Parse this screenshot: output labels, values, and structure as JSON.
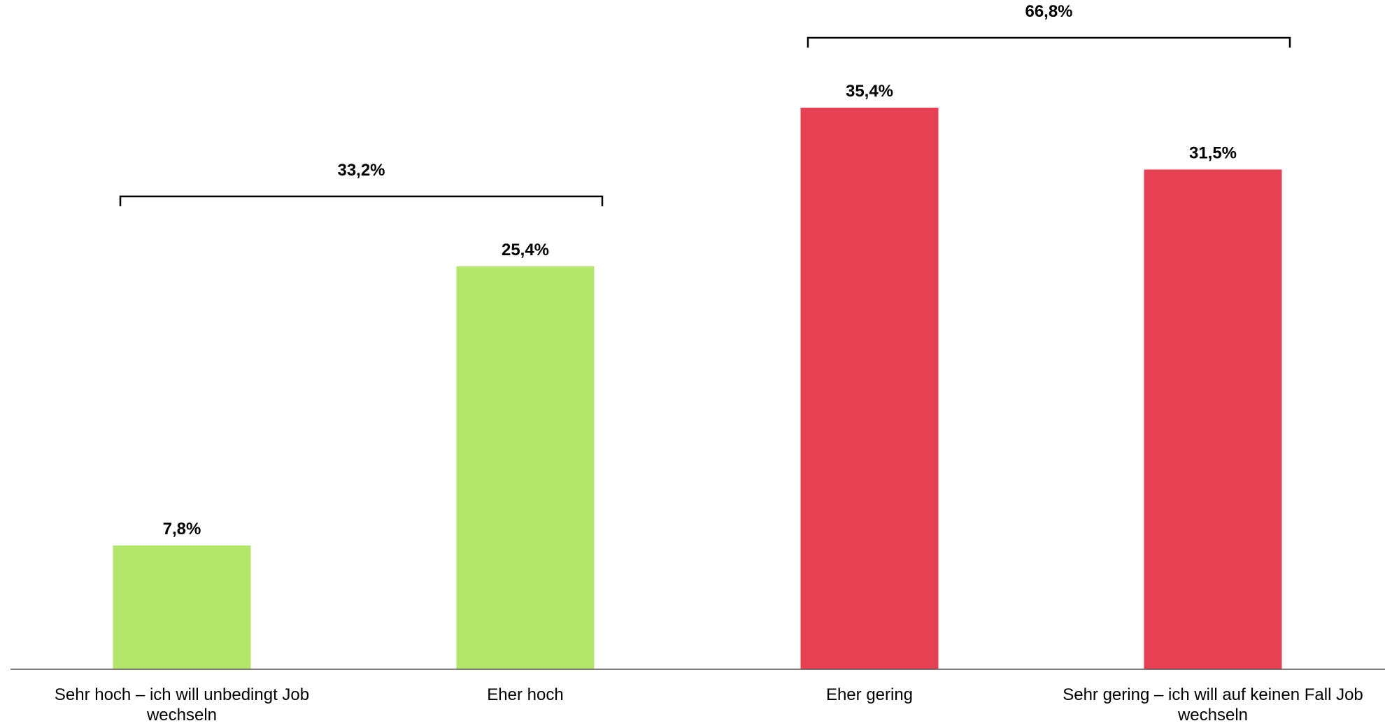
{
  "chart_data": {
    "type": "bar",
    "categories": [
      "Sehr hoch – ich will unbedingt Job wechseln",
      "Eher hoch",
      "Eher gering",
      "Sehr gering – ich will auf keinen Fall Job wechseln"
    ],
    "values": [
      7.8,
      25.4,
      35.4,
      31.5
    ],
    "value_labels": [
      "7,8%",
      "25,4%",
      "35,4%",
      "31,5%"
    ],
    "colors": [
      "#b3e66a",
      "#b3e66a",
      "#e64152",
      "#e64152"
    ],
    "brackets": [
      {
        "value": 33.2,
        "label": "33,2%"
      },
      {
        "value": 66.8,
        "label": "66,8%"
      }
    ]
  }
}
